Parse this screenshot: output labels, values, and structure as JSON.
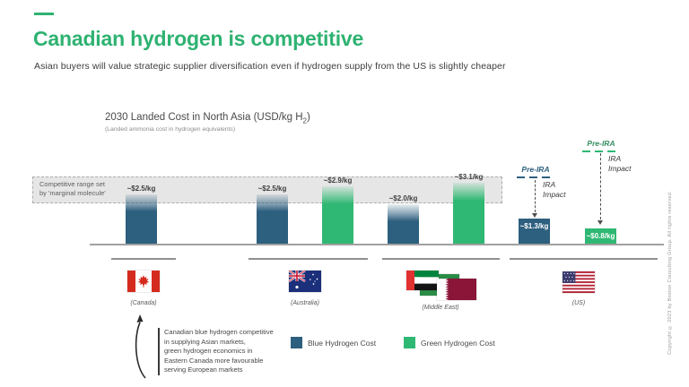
{
  "header": {
    "title": "Canadian hydrogen is competitive",
    "subtitle": "Asian buyers will value strategic supplier diversification even if hydrogen supply from the US is slightly cheaper"
  },
  "chart": {
    "title_pre": "2030 Landed Cost in North Asia (USD/kg H",
    "title_sub": "2",
    "title_post": ")",
    "note": "(Landed ammonia cost in hydrogen equivalents)",
    "band_label_line1": "Competitive range set",
    "band_label_line2": "by 'marginal molecule'"
  },
  "chart_data": {
    "type": "bar",
    "title": "2030 Landed Cost in North Asia (USD/kg H2)",
    "subtitle": "(Landed ammonia cost in hydrogen equivalents)",
    "ylabel": "USD/kg H2",
    "categories": [
      "Canada",
      "Australia",
      "Middle East",
      "US"
    ],
    "series": [
      {
        "name": "Blue Hydrogen Cost",
        "color": "#2D5F7E",
        "values": [
          2.5,
          2.5,
          2.0,
          1.3
        ]
      },
      {
        "name": "Green Hydrogen Cost",
        "color": "#2FB873",
        "values": [
          null,
          2.9,
          3.1,
          0.8
        ]
      }
    ],
    "bars": [
      {
        "group": "Canada",
        "series": "blue",
        "value": 2.5,
        "label": "~$2.5/kg",
        "label_pos": "above"
      },
      {
        "group": "Australia",
        "series": "blue",
        "value": 2.5,
        "label": "~$2.5/kg",
        "label_pos": "above"
      },
      {
        "group": "Australia",
        "series": "green",
        "value": 2.9,
        "label": "~$2.9/kg",
        "label_pos": "above"
      },
      {
        "group": "MiddleEast",
        "series": "blue",
        "value": 2.0,
        "label": "~$2.0/kg",
        "label_pos": "above"
      },
      {
        "group": "MiddleEast",
        "series": "green",
        "value": 3.1,
        "label": "~$3.1/kg",
        "label_pos": "above"
      },
      {
        "group": "US",
        "series": "blue",
        "value": 1.3,
        "label": "~$1.3/kg",
        "label_pos": "inside"
      },
      {
        "group": "US",
        "series": "green",
        "value": 0.8,
        "label": "~$0.8/kg",
        "label_pos": "inside"
      }
    ],
    "competitive_range_label": "Competitive range set by 'marginal molecule'",
    "competitive_range_usd_per_kg": [
      2.0,
      3.3
    ],
    "annotations": [
      {
        "target": "US blue bar",
        "label": "Pre-IRA",
        "impact": "IRA Impact"
      },
      {
        "target": "US green bar",
        "label": "Pre-IRA",
        "impact": "IRA Impact"
      }
    ]
  },
  "pre_ira_blue": {
    "label": "Pre-IRA",
    "impact_line1": "IRA",
    "impact_line2": "Impact"
  },
  "pre_ira_green": {
    "label": "Pre-IRA",
    "impact_line1": "IRA",
    "impact_line2": "Impact"
  },
  "groups": {
    "canada": {
      "label": "(Canada)"
    },
    "australia": {
      "label": "(Australia)"
    },
    "middle_east": {
      "label": "(Middle East)"
    },
    "us": {
      "label": "(US)"
    }
  },
  "legend": {
    "blue": {
      "label": "Blue Hydrogen Cost",
      "color": "#2D5F7E"
    },
    "green": {
      "label": "Green Hydrogen Cost",
      "color": "#2FB873"
    }
  },
  "callout": {
    "line1": "Canadian blue hydrogen competitive",
    "line2": "in supplying Asian markets,",
    "line3": "green hydrogen economics in",
    "line4": "Eastern Canada more favourable",
    "line5": "serving European markets"
  },
  "footer": {
    "copyright": "Copyright © 2023 by Boston Consulting Group. All rights reserved."
  },
  "colors": {
    "accent_green": "#2EB271",
    "blue_bar": "#2D5F7E",
    "green_bar": "#2FB873",
    "band_fill": "#E6E6E6"
  }
}
